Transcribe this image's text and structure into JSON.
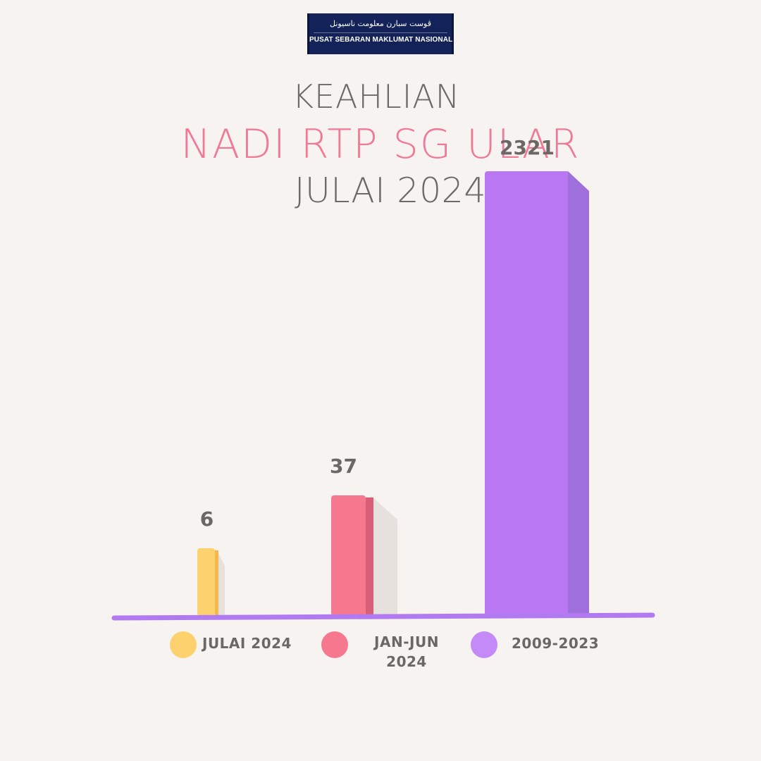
{
  "logo": {
    "jawi_text": "ڤوست سبارن معلومت ناسيونل",
    "text": "PUSAT SEBARAN MAKLUMAT NASIONAL"
  },
  "title_lines": {
    "line1": "KEAHLIAN",
    "line2": "NADI RTP SG ULAR",
    "line3": "JULAI 2024"
  },
  "colors": {
    "background": "#f7f3f1",
    "title_gray": "#6c6966",
    "title_pink": "#f07a95",
    "axis": "#b27af0",
    "julai": "#fdd16e",
    "janjun": "#f5788f",
    "range": "#b977f3"
  },
  "chart_data": {
    "type": "bar",
    "categories": [
      "JULAI 2024",
      "JAN-JUN 2024",
      "2009-2023"
    ],
    "values": [
      6,
      37,
      2321
    ],
    "data_labels": [
      "6",
      "37",
      "2321"
    ],
    "legend": [
      {
        "label": "JULAI 2024",
        "color": "#fdd16e"
      },
      {
        "label": "JAN-JUN\n2024",
        "color": "#f5788f"
      },
      {
        "label": "2009-2023",
        "color": "#c38af8"
      }
    ],
    "scale": "non-linear decorative",
    "grid": false,
    "legend_position": "bottom"
  }
}
